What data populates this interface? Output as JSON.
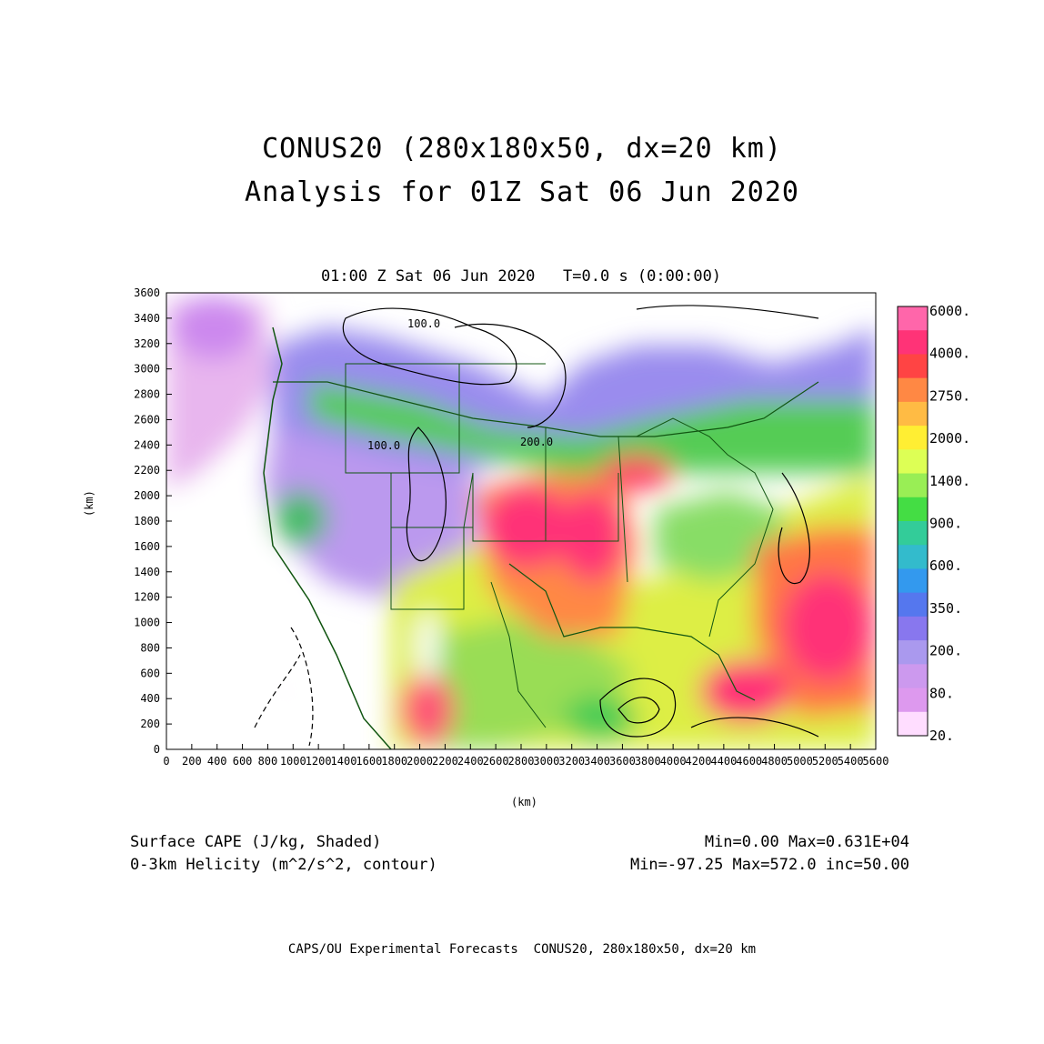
{
  "title_line1": "CONUS20 (280x180x50, dx=20 km)",
  "title_line2": "Analysis for 01Z Sat 06 Jun 2020",
  "subtitle": "01:00 Z Sat 06 Jun 2020   T=0.0 s (0:00:00)",
  "axes": {
    "xlabel": "(km)",
    "ylabel": "(km)",
    "x_ticks": [
      "0",
      "200",
      "400",
      "600",
      "800",
      "1000",
      "1200",
      "1400",
      "1600",
      "1800",
      "2000",
      "2200",
      "2400",
      "2600",
      "2800",
      "3000",
      "3200",
      "3400",
      "3600",
      "3800",
      "4000",
      "4200",
      "4400",
      "4600",
      "4800",
      "5000",
      "5200",
      "5400",
      "5600"
    ],
    "y_ticks": [
      "0",
      "200",
      "400",
      "600",
      "800",
      "1000",
      "1200",
      "1400",
      "1600",
      "1800",
      "2000",
      "2200",
      "2400",
      "2600",
      "2800",
      "3000",
      "3200",
      "3400",
      "3600"
    ],
    "xlim": [
      0,
      5600
    ],
    "ylim": [
      0,
      3600
    ]
  },
  "legend": {
    "labels": [
      "6000.",
      "4000.",
      "2750.",
      "2000.",
      "1400.",
      "900.",
      "600.",
      "350.",
      "200.",
      "80.",
      "20."
    ],
    "colors": [
      "#ff66aa",
      "#ff3377",
      "#ff4444",
      "#ff8844",
      "#ffbb44",
      "#ffee33",
      "#ddff55",
      "#99ee55",
      "#44dd44",
      "#33cc99",
      "#33bbcc",
      "#3399ee",
      "#5577ee",
      "#8877ee",
      "#aa99ee",
      "#cc99ee",
      "#dd99ee",
      "#ffddff"
    ]
  },
  "contour_labels": [
    "100.0",
    "100.0",
    "200.0"
  ],
  "annotation": {
    "cape_label": "Surface CAPE (J/kg, Shaded)",
    "helicity_label": "0-3km Helicity (m^2/s^2, contour)",
    "cape_stats": "Min=0.00 Max=0.631E+04",
    "helicity_stats": "Min=-97.25 Max=572.0 inc=50.00"
  },
  "footer": "CAPS/OU Experimental Forecasts  CONUS20, 280x180x50, dx=20 km"
}
